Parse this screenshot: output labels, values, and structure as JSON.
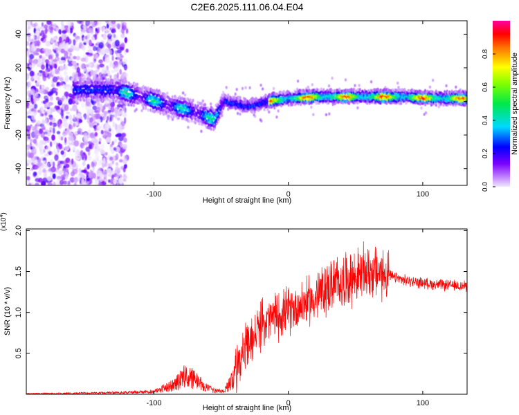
{
  "title": "C2E6.2025.111.06.04.E04",
  "chart_data": [
    {
      "type": "heatmap",
      "xlabel": "Height of straight line (km)",
      "ylabel": "Frequency (Hz)",
      "xlim": [
        -195,
        133
      ],
      "ylim": [
        -50,
        48
      ],
      "x_ticks": [
        -100,
        0,
        100
      ],
      "y_ticks": [
        -40,
        -20,
        0,
        20,
        40
      ],
      "colorbar": {
        "label": "Normalized spectral amplitude",
        "range": [
          0,
          1
        ],
        "ticks": [
          "0.0",
          "0.2",
          "0.4",
          "0.6",
          "0.8"
        ]
      },
      "ridge": {
        "x": [
          -195,
          -160,
          -130,
          -110,
          -90,
          -70,
          -55,
          -48,
          -40,
          -35,
          -30,
          -20,
          -10,
          0,
          20,
          50,
          80,
          110,
          133
        ],
        "y": [
          7,
          7,
          7,
          3,
          -2,
          -6,
          -11,
          0,
          -1,
          -2,
          -3,
          -1,
          1,
          2,
          3,
          3,
          3,
          2,
          2
        ]
      }
    },
    {
      "type": "line",
      "xlabel": "Height of straight line (km)",
      "ylabel": "SNR (10 * v/v)",
      "scale_label": "(x10",
      "scale_exp": "4",
      "xlim": [
        -195,
        133
      ],
      "ylim": [
        0,
        2.02
      ],
      "x_ticks": [
        -100,
        0,
        100
      ],
      "y_ticks": [
        "0.5",
        "1.0",
        "1.5",
        "2.0"
      ],
      "color": "#ff0000",
      "envelope": {
        "x": [
          -195,
          -150,
          -120,
          -100,
          -85,
          -78,
          -70,
          -62,
          -55,
          -48,
          -40,
          -35,
          -30,
          -25,
          -20,
          -10,
          0,
          10,
          20,
          25,
          30,
          40,
          50,
          60,
          70,
          80,
          90,
          100,
          110,
          120,
          133
        ],
        "y": [
          0.01,
          0.02,
          0.03,
          0.05,
          0.16,
          0.3,
          0.26,
          0.12,
          0.06,
          0.05,
          0.3,
          0.48,
          0.58,
          0.72,
          0.85,
          0.95,
          1.02,
          1.1,
          1.17,
          1.25,
          1.32,
          1.38,
          1.44,
          1.5,
          1.48,
          1.42,
          1.38,
          1.36,
          1.34,
          1.33,
          1.32
        ]
      }
    }
  ]
}
